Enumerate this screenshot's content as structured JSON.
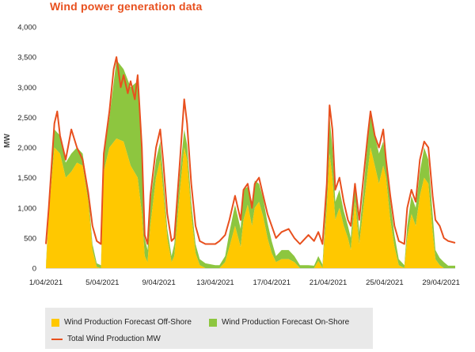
{
  "chart_data": {
    "type": "area",
    "title": "Wind power generation data",
    "ylabel": "MW",
    "xlabel": "",
    "ylim": [
      0,
      4000
    ],
    "y_ticks": [
      "0",
      "500",
      "1,000",
      "1,500",
      "2,000",
      "2,500",
      "3,000",
      "3,500",
      "4,000"
    ],
    "x_range_days": [
      1,
      30
    ],
    "x_ticks": [
      {
        "day": 1,
        "label": "1/04/2021"
      },
      {
        "day": 5,
        "label": "5/04/2021"
      },
      {
        "day": 9,
        "label": "9/04/2021"
      },
      {
        "day": 13,
        "label": "13/04/2021"
      },
      {
        "day": 17,
        "label": "17/04/2021"
      },
      {
        "day": 21,
        "label": "21/04/2021"
      },
      {
        "day": 25,
        "label": "25/04/2021"
      },
      {
        "day": 29,
        "label": "29/04/2021"
      }
    ],
    "grid": false,
    "legend_position": "bottom",
    "series": [
      {
        "name": "Wind Production Forecast Off-Shore",
        "kind": "stacked-area",
        "color": "#ffc800",
        "points": [
          [
            1,
            0
          ],
          [
            1.2,
            900
          ],
          [
            1.6,
            2000
          ],
          [
            2.0,
            1900
          ],
          [
            2.4,
            1500
          ],
          [
            2.8,
            1600
          ],
          [
            3.2,
            1750
          ],
          [
            3.6,
            1700
          ],
          [
            4.0,
            1100
          ],
          [
            4.3,
            300
          ],
          [
            4.6,
            20
          ],
          [
            4.9,
            0
          ],
          [
            5.1,
            1600
          ],
          [
            5.5,
            2000
          ],
          [
            6.0,
            2150
          ],
          [
            6.5,
            2100
          ],
          [
            7.0,
            1700
          ],
          [
            7.5,
            1500
          ],
          [
            7.8,
            900
          ],
          [
            8.0,
            200
          ],
          [
            8.2,
            100
          ],
          [
            8.4,
            700
          ],
          [
            8.8,
            1500
          ],
          [
            9.1,
            1800
          ],
          [
            9.3,
            1300
          ],
          [
            9.6,
            500
          ],
          [
            9.9,
            100
          ],
          [
            10.1,
            200
          ],
          [
            10.5,
            1300
          ],
          [
            10.8,
            2000
          ],
          [
            11.0,
            1800
          ],
          [
            11.3,
            900
          ],
          [
            11.6,
            250
          ],
          [
            11.9,
            50
          ],
          [
            12.3,
            0
          ],
          [
            13.0,
            0
          ],
          [
            13.3,
            0
          ],
          [
            13.7,
            100
          ],
          [
            14.0,
            350
          ],
          [
            14.4,
            700
          ],
          [
            14.8,
            350
          ],
          [
            15.0,
            800
          ],
          [
            15.3,
            1050
          ],
          [
            15.6,
            700
          ],
          [
            15.8,
            1000
          ],
          [
            16.1,
            1100
          ],
          [
            16.4,
            850
          ],
          [
            16.7,
            500
          ],
          [
            17.0,
            250
          ],
          [
            17.3,
            100
          ],
          [
            17.7,
            150
          ],
          [
            18.2,
            150
          ],
          [
            18.6,
            100
          ],
          [
            19.0,
            0
          ],
          [
            19.6,
            0
          ],
          [
            20.0,
            0
          ],
          [
            20.3,
            120
          ],
          [
            20.6,
            0
          ],
          [
            20.9,
            1000
          ],
          [
            21.1,
            1900
          ],
          [
            21.3,
            1500
          ],
          [
            21.5,
            800
          ],
          [
            21.8,
            1000
          ],
          [
            22.1,
            700
          ],
          [
            22.4,
            500
          ],
          [
            22.6,
            300
          ],
          [
            22.9,
            1100
          ],
          [
            23.2,
            400
          ],
          [
            23.5,
            1000
          ],
          [
            23.8,
            1600
          ],
          [
            24.0,
            2000
          ],
          [
            24.3,
            1700
          ],
          [
            24.6,
            1400
          ],
          [
            24.9,
            1700
          ],
          [
            25.1,
            1500
          ],
          [
            25.4,
            800
          ],
          [
            25.7,
            350
          ],
          [
            26.0,
            50
          ],
          [
            26.4,
            0
          ],
          [
            26.6,
            500
          ],
          [
            26.9,
            900
          ],
          [
            27.2,
            700
          ],
          [
            27.5,
            1200
          ],
          [
            27.8,
            1500
          ],
          [
            28.1,
            1400
          ],
          [
            28.4,
            600
          ],
          [
            28.6,
            150
          ],
          [
            28.9,
            50
          ],
          [
            29.2,
            0
          ],
          [
            29.5,
            0
          ],
          [
            30.0,
            0
          ]
        ]
      },
      {
        "name": "Wind Production Forecast On-Shore",
        "kind": "stacked-area",
        "color": "#8dc63f",
        "points": [
          [
            1,
            50
          ],
          [
            1.2,
            100
          ],
          [
            1.6,
            300
          ],
          [
            2.0,
            300
          ],
          [
            2.4,
            250
          ],
          [
            2.8,
            300
          ],
          [
            3.2,
            250
          ],
          [
            3.6,
            200
          ],
          [
            4.0,
            150
          ],
          [
            4.3,
            100
          ],
          [
            4.6,
            60
          ],
          [
            4.9,
            50
          ],
          [
            5.1,
            300
          ],
          [
            5.5,
            500
          ],
          [
            6.0,
            1300
          ],
          [
            6.5,
            1200
          ],
          [
            7.0,
            1300
          ],
          [
            7.5,
            1600
          ],
          [
            7.8,
            1000
          ],
          [
            8.0,
            300
          ],
          [
            8.2,
            200
          ],
          [
            8.4,
            400
          ],
          [
            8.8,
            300
          ],
          [
            9.1,
            300
          ],
          [
            9.3,
            250
          ],
          [
            9.6,
            150
          ],
          [
            9.9,
            100
          ],
          [
            10.1,
            200
          ],
          [
            10.5,
            300
          ],
          [
            10.8,
            300
          ],
          [
            11.0,
            250
          ],
          [
            11.3,
            200
          ],
          [
            11.6,
            150
          ],
          [
            11.9,
            100
          ],
          [
            12.3,
            80
          ],
          [
            13.0,
            50
          ],
          [
            13.3,
            50
          ],
          [
            13.7,
            100
          ],
          [
            14.0,
            250
          ],
          [
            14.4,
            350
          ],
          [
            14.8,
            300
          ],
          [
            15.0,
            500
          ],
          [
            15.3,
            300
          ],
          [
            15.6,
            400
          ],
          [
            15.8,
            450
          ],
          [
            16.1,
            300
          ],
          [
            16.4,
            300
          ],
          [
            16.7,
            250
          ],
          [
            17.0,
            200
          ],
          [
            17.3,
            100
          ],
          [
            17.7,
            150
          ],
          [
            18.2,
            150
          ],
          [
            18.6,
            100
          ],
          [
            19.0,
            50
          ],
          [
            19.6,
            50
          ],
          [
            20.0,
            40
          ],
          [
            20.3,
            80
          ],
          [
            20.6,
            60
          ],
          [
            20.9,
            300
          ],
          [
            21.1,
            600
          ],
          [
            21.3,
            500
          ],
          [
            21.5,
            300
          ],
          [
            21.8,
            300
          ],
          [
            22.1,
            250
          ],
          [
            22.4,
            200
          ],
          [
            22.6,
            200
          ],
          [
            22.9,
            300
          ],
          [
            23.2,
            200
          ],
          [
            23.5,
            300
          ],
          [
            23.8,
            500
          ],
          [
            24.0,
            600
          ],
          [
            24.3,
            500
          ],
          [
            24.6,
            500
          ],
          [
            24.9,
            400
          ],
          [
            25.1,
            300
          ],
          [
            25.4,
            300
          ],
          [
            25.7,
            200
          ],
          [
            26.0,
            100
          ],
          [
            26.4,
            50
          ],
          [
            26.6,
            200
          ],
          [
            26.9,
            300
          ],
          [
            27.2,
            300
          ],
          [
            27.5,
            400
          ],
          [
            27.8,
            500
          ],
          [
            28.1,
            400
          ],
          [
            28.4,
            300
          ],
          [
            28.6,
            150
          ],
          [
            28.9,
            120
          ],
          [
            29.2,
            100
          ],
          [
            29.5,
            40
          ],
          [
            30.0,
            40
          ]
        ]
      },
      {
        "name": "Total Wind Production MW",
        "kind": "line",
        "color": "#e8501e",
        "points": [
          [
            1,
            400
          ],
          [
            1.2,
            1000
          ],
          [
            1.6,
            2400
          ],
          [
            1.8,
            2600
          ],
          [
            2.0,
            2200
          ],
          [
            2.4,
            1800
          ],
          [
            2.8,
            2300
          ],
          [
            3.2,
            2000
          ],
          [
            3.6,
            1800
          ],
          [
            4.0,
            1250
          ],
          [
            4.3,
            700
          ],
          [
            4.6,
            450
          ],
          [
            4.9,
            400
          ],
          [
            5.1,
            1900
          ],
          [
            5.5,
            2600
          ],
          [
            5.8,
            3300
          ],
          [
            6.0,
            3500
          ],
          [
            6.3,
            3000
          ],
          [
            6.5,
            3200
          ],
          [
            6.8,
            2900
          ],
          [
            7.0,
            3100
          ],
          [
            7.3,
            2800
          ],
          [
            7.5,
            3200
          ],
          [
            7.8,
            2000
          ],
          [
            8.0,
            550
          ],
          [
            8.2,
            400
          ],
          [
            8.4,
            1200
          ],
          [
            8.8,
            2000
          ],
          [
            9.1,
            2300
          ],
          [
            9.3,
            1800
          ],
          [
            9.6,
            900
          ],
          [
            9.9,
            450
          ],
          [
            10.1,
            500
          ],
          [
            10.5,
            1800
          ],
          [
            10.8,
            2800
          ],
          [
            11.0,
            2400
          ],
          [
            11.3,
            1400
          ],
          [
            11.6,
            700
          ],
          [
            11.9,
            450
          ],
          [
            12.3,
            400
          ],
          [
            13.0,
            400
          ],
          [
            13.3,
            450
          ],
          [
            13.7,
            550
          ],
          [
            14.0,
            800
          ],
          [
            14.4,
            1200
          ],
          [
            14.8,
            800
          ],
          [
            15.0,
            1300
          ],
          [
            15.3,
            1400
          ],
          [
            15.6,
            1000
          ],
          [
            15.8,
            1400
          ],
          [
            16.1,
            1500
          ],
          [
            16.4,
            1200
          ],
          [
            16.7,
            900
          ],
          [
            17.0,
            700
          ],
          [
            17.3,
            500
          ],
          [
            17.7,
            600
          ],
          [
            18.2,
            650
          ],
          [
            18.6,
            500
          ],
          [
            19.0,
            400
          ],
          [
            19.6,
            550
          ],
          [
            20.0,
            450
          ],
          [
            20.3,
            600
          ],
          [
            20.6,
            400
          ],
          [
            20.9,
            1400
          ],
          [
            21.1,
            2700
          ],
          [
            21.3,
            2300
          ],
          [
            21.5,
            1300
          ],
          [
            21.8,
            1500
          ],
          [
            22.1,
            1100
          ],
          [
            22.4,
            800
          ],
          [
            22.6,
            700
          ],
          [
            22.9,
            1400
          ],
          [
            23.2,
            800
          ],
          [
            23.5,
            1500
          ],
          [
            23.8,
            2200
          ],
          [
            24.0,
            2600
          ],
          [
            24.3,
            2200
          ],
          [
            24.6,
            2000
          ],
          [
            24.9,
            2300
          ],
          [
            25.1,
            1800
          ],
          [
            25.4,
            1200
          ],
          [
            25.7,
            700
          ],
          [
            26.0,
            450
          ],
          [
            26.4,
            400
          ],
          [
            26.6,
            1000
          ],
          [
            26.9,
            1300
          ],
          [
            27.2,
            1100
          ],
          [
            27.5,
            1800
          ],
          [
            27.8,
            2100
          ],
          [
            28.1,
            2000
          ],
          [
            28.4,
            1200
          ],
          [
            28.6,
            800
          ],
          [
            28.9,
            700
          ],
          [
            29.2,
            500
          ],
          [
            29.5,
            450
          ],
          [
            30.0,
            420
          ]
        ]
      }
    ]
  }
}
